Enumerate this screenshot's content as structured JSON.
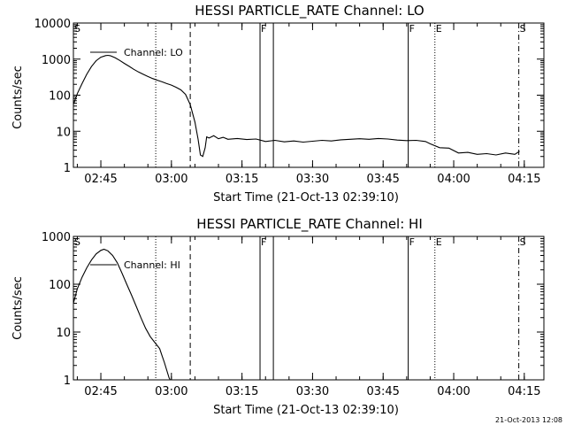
{
  "footer_timestamp": "21-Oct-2013 12:08",
  "chart_data": [
    {
      "type": "line",
      "title": "HESSI PARTICLE_RATE Channel: LO",
      "xlabel": "Start Time (21-Oct-13 02:39:10)",
      "ylabel": "Counts/sec",
      "y_scale": "log",
      "xlim": [
        "02:39:10",
        "04:19:10"
      ],
      "ylim": [
        1,
        10000
      ],
      "x_ticks": [
        "02:45",
        "03:00",
        "03:15",
        "03:30",
        "03:45",
        "04:00",
        "04:15"
      ],
      "y_ticks": [
        "1",
        "10",
        "100",
        "1000",
        "10000"
      ],
      "legend": "top-left",
      "series": [
        {
          "name": "Channel: LO",
          "points": [
            [
              "02:39:10",
              55
            ],
            [
              "02:40:00",
              110
            ],
            [
              "02:41:00",
              210
            ],
            [
              "02:42:00",
              380
            ],
            [
              "02:43:00",
              620
            ],
            [
              "02:44:00",
              900
            ],
            [
              "02:45:00",
              1130
            ],
            [
              "02:46:00",
              1250
            ],
            [
              "02:46:30",
              1270
            ],
            [
              "02:47:00",
              1240
            ],
            [
              "02:48:00",
              1100
            ],
            [
              "02:49:00",
              920
            ],
            [
              "02:50:00",
              760
            ],
            [
              "02:51:00",
              630
            ],
            [
              "02:52:00",
              520
            ],
            [
              "02:53:00",
              440
            ],
            [
              "02:54:00",
              380
            ],
            [
              "02:55:00",
              330
            ],
            [
              "02:56:00",
              290
            ],
            [
              "02:57:00",
              260
            ],
            [
              "02:58:00",
              235
            ],
            [
              "02:59:00",
              210
            ],
            [
              "03:00:00",
              190
            ],
            [
              "03:01:00",
              165
            ],
            [
              "03:02:00",
              140
            ],
            [
              "03:03:00",
              105
            ],
            [
              "03:04:00",
              55
            ],
            [
              "03:05:00",
              18
            ],
            [
              "03:05:40",
              6
            ],
            [
              "03:06:10",
              2.2
            ],
            [
              "03:06:40",
              2.0
            ],
            [
              "03:07:10",
              3.5
            ],
            [
              "03:07:30",
              7
            ],
            [
              "03:08:00",
              6.5
            ],
            [
              "03:09:00",
              7.5
            ],
            [
              "03:10:00",
              6.2
            ],
            [
              "03:11:00",
              6.8
            ],
            [
              "03:12:00",
              6.0
            ],
            [
              "03:14:00",
              6.3
            ],
            [
              "03:16:00",
              5.9
            ],
            [
              "03:18:00",
              6.1
            ],
            [
              "03:20:00",
              5.2
            ],
            [
              "03:22:00",
              5.6
            ],
            [
              "03:24:00",
              5.1
            ],
            [
              "03:26:00",
              5.4
            ],
            [
              "03:28:00",
              5.0
            ],
            [
              "03:30:00",
              5.3
            ],
            [
              "03:32:00",
              5.6
            ],
            [
              "03:34:00",
              5.4
            ],
            [
              "03:36:00",
              5.8
            ],
            [
              "03:38:00",
              6.0
            ],
            [
              "03:40:00",
              6.2
            ],
            [
              "03:42:00",
              6.0
            ],
            [
              "03:44:00",
              6.3
            ],
            [
              "03:46:00",
              6.1
            ],
            [
              "03:48:00",
              5.7
            ],
            [
              "03:50:00",
              5.5
            ],
            [
              "03:52:00",
              5.6
            ],
            [
              "03:54:00",
              5.2
            ],
            [
              "03:55:00",
              4.5
            ],
            [
              "03:57:00",
              3.5
            ],
            [
              "03:59:00",
              3.4
            ],
            [
              "04:01:00",
              2.5
            ],
            [
              "04:03:00",
              2.6
            ],
            [
              "04:05:00",
              2.3
            ],
            [
              "04:07:00",
              2.4
            ],
            [
              "04:09:00",
              2.2
            ],
            [
              "04:11:00",
              2.5
            ],
            [
              "04:13:00",
              2.3
            ],
            [
              "04:14:00",
              2.8
            ]
          ]
        }
      ],
      "markers": [
        {
          "time": "02:39:10",
          "style": "dash-dot",
          "label": "S"
        },
        {
          "time": "02:56:40",
          "style": "dotted",
          "label": ""
        },
        {
          "time": "03:04:00",
          "style": "dashed",
          "label": ""
        },
        {
          "time": "03:18:50",
          "style": "solid",
          "label": "F"
        },
        {
          "time": "03:21:40",
          "style": "solid",
          "label": ""
        },
        {
          "time": "03:50:20",
          "style": "solid",
          "label": "F"
        },
        {
          "time": "03:56:00",
          "style": "dotted",
          "label": "E"
        },
        {
          "time": "04:13:50",
          "style": "dash-dot",
          "label": "S"
        }
      ]
    },
    {
      "type": "line",
      "title": "HESSI PARTICLE_RATE Channel: HI",
      "xlabel": "Start Time (21-Oct-13 02:39:10)",
      "ylabel": "Counts/sec",
      "y_scale": "log",
      "xlim": [
        "02:39:10",
        "04:19:10"
      ],
      "ylim": [
        1,
        1000
      ],
      "x_ticks": [
        "02:45",
        "03:00",
        "03:15",
        "03:30",
        "03:45",
        "04:00",
        "04:15"
      ],
      "y_ticks": [
        "1",
        "10",
        "100",
        "1000"
      ],
      "legend": "top-left",
      "series": [
        {
          "name": "Channel: HI",
          "points": [
            [
              "02:39:10",
              40
            ],
            [
              "02:40:00",
              80
            ],
            [
              "02:41:00",
              140
            ],
            [
              "02:42:00",
              220
            ],
            [
              "02:43:00",
              320
            ],
            [
              "02:44:00",
              430
            ],
            [
              "02:45:00",
              510
            ],
            [
              "02:45:40",
              540
            ],
            [
              "02:46:30",
              500
            ],
            [
              "02:47:30",
              400
            ],
            [
              "02:48:30",
              280
            ],
            [
              "02:49:30",
              170
            ],
            [
              "02:50:30",
              100
            ],
            [
              "02:51:30",
              60
            ],
            [
              "02:52:30",
              35
            ],
            [
              "02:53:30",
              20
            ],
            [
              "02:54:30",
              12
            ],
            [
              "02:55:30",
              8
            ],
            [
              "02:56:30",
              6
            ],
            [
              "02:57:30",
              4.5
            ],
            [
              "02:58:00",
              3.2
            ],
            [
              "02:58:30",
              2.3
            ],
            [
              "02:59:00",
              1.6
            ],
            [
              "02:59:30",
              1.1
            ],
            [
              "02:59:45",
              1.0
            ]
          ]
        }
      ],
      "markers": [
        {
          "time": "02:39:10",
          "style": "dash-dot",
          "label": "S"
        },
        {
          "time": "02:56:40",
          "style": "dotted",
          "label": ""
        },
        {
          "time": "03:04:00",
          "style": "dashed",
          "label": ""
        },
        {
          "time": "03:18:50",
          "style": "solid",
          "label": "F"
        },
        {
          "time": "03:21:40",
          "style": "solid",
          "label": ""
        },
        {
          "time": "03:50:20",
          "style": "solid",
          "label": "F"
        },
        {
          "time": "03:56:00",
          "style": "dotted",
          "label": "E"
        },
        {
          "time": "04:13:50",
          "style": "dash-dot",
          "label": "S"
        }
      ]
    }
  ]
}
